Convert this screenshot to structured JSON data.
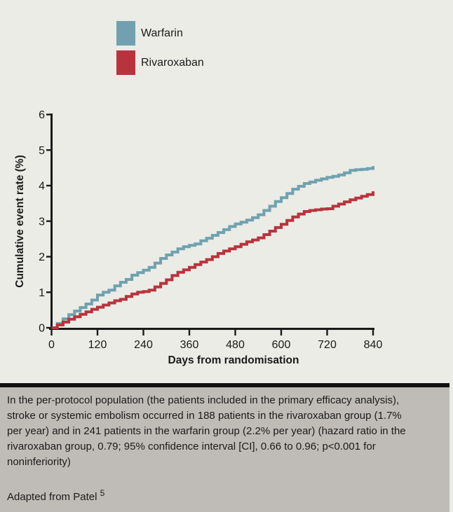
{
  "chart_data": {
    "type": "line",
    "subtype": "kaplan-meier-step",
    "title": "",
    "xlabel": "Days from randomisation",
    "ylabel": "Cumulative event rate (%)",
    "xlim": [
      0,
      840
    ],
    "ylim": [
      0,
      6
    ],
    "x_ticks": [
      0,
      120,
      240,
      360,
      480,
      600,
      720,
      840
    ],
    "y_ticks": [
      0,
      1,
      2,
      3,
      4,
      5,
      6
    ],
    "grid": false,
    "legend_position": "top-center",
    "series": [
      {
        "name": "Warfarin",
        "color": "#71a1b0",
        "points": [
          [
            0,
            0
          ],
          [
            15,
            0.12
          ],
          [
            30,
            0.25
          ],
          [
            45,
            0.37
          ],
          [
            60,
            0.47
          ],
          [
            75,
            0.57
          ],
          [
            90,
            0.67
          ],
          [
            105,
            0.78
          ],
          [
            120,
            0.92
          ],
          [
            135,
            1.0
          ],
          [
            150,
            1.06
          ],
          [
            165,
            1.18
          ],
          [
            180,
            1.28
          ],
          [
            195,
            1.36
          ],
          [
            210,
            1.48
          ],
          [
            225,
            1.55
          ],
          [
            240,
            1.62
          ],
          [
            255,
            1.7
          ],
          [
            270,
            1.82
          ],
          [
            285,
            1.95
          ],
          [
            300,
            2.05
          ],
          [
            315,
            2.13
          ],
          [
            330,
            2.22
          ],
          [
            345,
            2.28
          ],
          [
            360,
            2.32
          ],
          [
            375,
            2.36
          ],
          [
            390,
            2.45
          ],
          [
            405,
            2.52
          ],
          [
            420,
            2.6
          ],
          [
            435,
            2.68
          ],
          [
            450,
            2.76
          ],
          [
            465,
            2.85
          ],
          [
            480,
            2.92
          ],
          [
            495,
            2.97
          ],
          [
            510,
            3.03
          ],
          [
            525,
            3.1
          ],
          [
            540,
            3.18
          ],
          [
            555,
            3.3
          ],
          [
            570,
            3.42
          ],
          [
            585,
            3.55
          ],
          [
            600,
            3.66
          ],
          [
            615,
            3.78
          ],
          [
            630,
            3.9
          ],
          [
            645,
            3.98
          ],
          [
            660,
            4.06
          ],
          [
            675,
            4.1
          ],
          [
            690,
            4.15
          ],
          [
            705,
            4.19
          ],
          [
            720,
            4.23
          ],
          [
            735,
            4.26
          ],
          [
            750,
            4.3
          ],
          [
            765,
            4.36
          ],
          [
            780,
            4.43
          ],
          [
            795,
            4.45
          ],
          [
            810,
            4.46
          ],
          [
            825,
            4.48
          ],
          [
            840,
            4.55
          ]
        ]
      },
      {
        "name": "Rivaroxaban",
        "color": "#b9333e",
        "points": [
          [
            0,
            0
          ],
          [
            15,
            0.08
          ],
          [
            30,
            0.16
          ],
          [
            45,
            0.24
          ],
          [
            60,
            0.31
          ],
          [
            75,
            0.38
          ],
          [
            90,
            0.45
          ],
          [
            105,
            0.52
          ],
          [
            120,
            0.58
          ],
          [
            135,
            0.64
          ],
          [
            150,
            0.7
          ],
          [
            165,
            0.76
          ],
          [
            180,
            0.8
          ],
          [
            195,
            0.88
          ],
          [
            210,
            0.95
          ],
          [
            225,
            1.0
          ],
          [
            240,
            1.02
          ],
          [
            255,
            1.06
          ],
          [
            270,
            1.15
          ],
          [
            285,
            1.25
          ],
          [
            300,
            1.35
          ],
          [
            315,
            1.47
          ],
          [
            330,
            1.56
          ],
          [
            345,
            1.63
          ],
          [
            360,
            1.7
          ],
          [
            375,
            1.78
          ],
          [
            390,
            1.85
          ],
          [
            405,
            1.92
          ],
          [
            420,
            2.0
          ],
          [
            435,
            2.09
          ],
          [
            450,
            2.16
          ],
          [
            465,
            2.22
          ],
          [
            480,
            2.28
          ],
          [
            495,
            2.35
          ],
          [
            510,
            2.42
          ],
          [
            525,
            2.47
          ],
          [
            540,
            2.53
          ],
          [
            555,
            2.62
          ],
          [
            570,
            2.72
          ],
          [
            585,
            2.82
          ],
          [
            600,
            2.91
          ],
          [
            615,
            3.02
          ],
          [
            630,
            3.12
          ],
          [
            645,
            3.2
          ],
          [
            660,
            3.27
          ],
          [
            675,
            3.3
          ],
          [
            690,
            3.32
          ],
          [
            705,
            3.34
          ],
          [
            720,
            3.35
          ],
          [
            735,
            3.42
          ],
          [
            750,
            3.48
          ],
          [
            765,
            3.54
          ],
          [
            780,
            3.6
          ],
          [
            795,
            3.65
          ],
          [
            810,
            3.7
          ],
          [
            825,
            3.75
          ],
          [
            840,
            3.84
          ]
        ]
      }
    ]
  },
  "caption": {
    "body": "In the per-protocol population (the patients included in the primary efficacy analysis), stroke or systemic embolism occurred in 188 patients in the rivaroxaban group (1.7% per year) and in 241 patients in the warfarin group (2.2% per year) (hazard ratio in the rivaroxaban group, 0.79; 95% confidence interval [CI], 0.66 to 0.96; p<0.001 for noninferiority)",
    "source": "Adapted from Patel",
    "source_ref": "5"
  },
  "colors": {
    "chart_background": "#eaece5",
    "caption_background": "#bfbcb7",
    "divider": "#111111",
    "axis": "#1a1a1a",
    "text": "#1b1b1b"
  }
}
